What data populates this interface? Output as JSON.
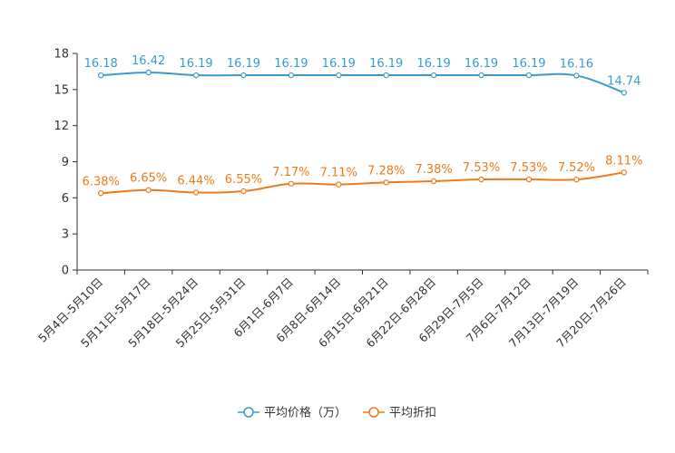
{
  "chart_data": {
    "type": "line",
    "title": "",
    "xlabel": "",
    "ylabel": "",
    "ylim": [
      0,
      18
    ],
    "yticks": [
      0,
      3,
      6,
      9,
      12,
      15,
      18
    ],
    "grid": false,
    "legend_position": "bottom-center",
    "categories": [
      "5月4日-5月10日",
      "5月11日-5月17日",
      "5月18日-5月24日",
      "5月25日-5月31日",
      "6月1日-6月7日",
      "6月8日-6月14日",
      "6月15日-6月21日",
      "6月22日-6月28日",
      "6月29日-7月5日",
      "7月6日-7月12日",
      "7月13日-7月19日",
      "7月20日-7月26日"
    ],
    "series": [
      {
        "name": "平均价格（万）",
        "color": "#3b9ccc",
        "values": [
          16.18,
          16.42,
          16.19,
          16.19,
          16.19,
          16.19,
          16.19,
          16.19,
          16.19,
          16.19,
          16.16,
          14.74
        ],
        "labels": [
          "16.18",
          "16.42",
          "16.19",
          "16.19",
          "16.19",
          "16.19",
          "16.19",
          "16.19",
          "16.19",
          "16.19",
          "16.16",
          "14.74"
        ]
      },
      {
        "name": "平均折扣",
        "color": "#f07a1a",
        "values": [
          6.38,
          6.65,
          6.44,
          6.55,
          7.17,
          7.11,
          7.28,
          7.38,
          7.53,
          7.53,
          7.52,
          8.11
        ],
        "labels": [
          "6.38%",
          "6.65%",
          "6.44%",
          "6.55%",
          "7.17%",
          "7.11%",
          "7.28%",
          "7.38%",
          "7.53%",
          "7.53%",
          "7.52%",
          "8.11%"
        ]
      }
    ]
  }
}
